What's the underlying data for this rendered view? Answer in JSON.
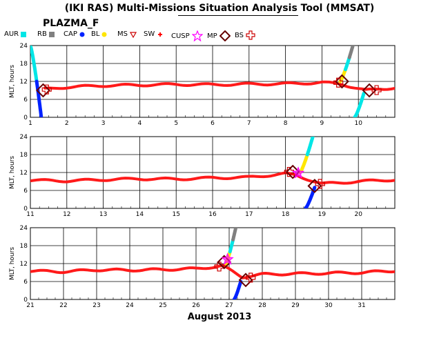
{
  "title": "(IKI RAS) Multi-Missions Situation Analysis Tool (MMSAT)",
  "mission": "PLAZMA_F",
  "legend": [
    {
      "label": "AUR",
      "icon": "cyan-square-icon",
      "color": "#00e6e6"
    },
    {
      "label": "RB",
      "icon": "gray-square-icon",
      "color": "#808080"
    },
    {
      "label": "CAP",
      "icon": "blue-circle-icon",
      "color": "#0022ff"
    },
    {
      "label": "BL",
      "icon": "yellow-circle-icon",
      "color": "#ffe600"
    },
    {
      "label": "MS",
      "icon": "triangle-icon",
      "color": "#cc0000"
    },
    {
      "label": "SW",
      "icon": "red-dot-icon",
      "color": "#ff0000"
    },
    {
      "label": "CUSP",
      "icon": "magenta-star-icon",
      "color": "#ff00ff"
    },
    {
      "label": "MP",
      "icon": "diamond-icon",
      "color": "#660000"
    },
    {
      "label": "BS",
      "icon": "cross-icon",
      "color": "#cc0000"
    }
  ],
  "x_title": "August 2013",
  "chart_data": [
    {
      "type": "scatter",
      "ylabel": "MLT, hours",
      "yticks": [
        0,
        6,
        12,
        18,
        24
      ],
      "ylim": [
        0,
        24
      ],
      "xlim": [
        1,
        11
      ],
      "xticks": [
        1,
        2,
        3,
        4,
        5,
        6,
        7,
        8,
        9,
        10
      ],
      "grid": true,
      "sw_mlt": [
        [
          1.4,
          9.4
        ],
        [
          2.0,
          10.1
        ],
        [
          3.0,
          10.6
        ],
        [
          4.0,
          10.8
        ],
        [
          5.0,
          11.0
        ],
        [
          6.0,
          10.9
        ],
        [
          7.0,
          11.1
        ],
        [
          8.0,
          11.2
        ],
        [
          9.0,
          11.6
        ],
        [
          9.5,
          11.2
        ],
        [
          10.2,
          9.0
        ],
        [
          11.0,
          9.9
        ]
      ],
      "crossings": [
        {
          "x": 1.35,
          "y": 9.0,
          "type": "MP"
        },
        {
          "x": 1.45,
          "y": 9.3,
          "type": "BS"
        },
        {
          "x": 9.55,
          "y": 12.0,
          "type": "MP"
        },
        {
          "x": 9.45,
          "y": 11.6,
          "type": "BS"
        },
        {
          "x": 10.3,
          "y": 9.0,
          "type": "MP"
        },
        {
          "x": 10.5,
          "y": 9.1,
          "type": "BS"
        }
      ],
      "inner_passes": [
        {
          "x_start": 1.0,
          "x_end": 1.3,
          "y_start": 24,
          "y_end": 0,
          "regions": [
            "AUR",
            "CAP"
          ]
        },
        {
          "x_start": 9.5,
          "x_end": 9.85,
          "y_start": 12,
          "y_end": 24,
          "regions": [
            "BL",
            "AUR",
            "RB"
          ]
        },
        {
          "x_start": 9.9,
          "x_end": 10.15,
          "y_start": 0,
          "y_end": 8,
          "regions": [
            "AUR"
          ]
        }
      ]
    },
    {
      "type": "scatter",
      "ylabel": "MLT, hours",
      "yticks": [
        0,
        6,
        12,
        18,
        24
      ],
      "ylim": [
        0,
        24
      ],
      "xlim": [
        11,
        21
      ],
      "xticks": [
        11,
        12,
        13,
        14,
        15,
        16,
        17,
        18,
        19,
        20
      ],
      "grid": true,
      "sw_mlt": [
        [
          11,
          9.4
        ],
        [
          12,
          9.2
        ],
        [
          13,
          9.6
        ],
        [
          14,
          9.9
        ],
        [
          15,
          9.8
        ],
        [
          16,
          10.2
        ],
        [
          17,
          10.4
        ],
        [
          18,
          11.6
        ],
        [
          18.3,
          11.0
        ],
        [
          19,
          8.2
        ],
        [
          20,
          9.0
        ],
        [
          21,
          9.6
        ]
      ],
      "crossings": [
        {
          "x": 18.1,
          "y": 12.2,
          "type": "BS"
        },
        {
          "x": 18.2,
          "y": 12.2,
          "type": "MP"
        },
        {
          "x": 18.35,
          "y": 11.8,
          "type": "CUSP"
        },
        {
          "x": 18.8,
          "y": 7.5,
          "type": "MP"
        },
        {
          "x": 18.95,
          "y": 8.2,
          "type": "BS"
        }
      ],
      "inner_passes": [
        {
          "x_start": 18.4,
          "x_end": 18.75,
          "y_start": 12,
          "y_end": 24,
          "regions": [
            "BL",
            "AUR"
          ]
        },
        {
          "x_start": 18.55,
          "x_end": 18.8,
          "y_start": 0,
          "y_end": 7,
          "regions": [
            "CAP"
          ]
        }
      ]
    },
    {
      "type": "scatter",
      "ylabel": "MLT, hours",
      "yticks": [
        0,
        6,
        12,
        18,
        24
      ],
      "ylim": [
        0,
        24
      ],
      "xlim": [
        21,
        32
      ],
      "xticks": [
        21,
        22,
        23,
        24,
        25,
        26,
        27,
        28,
        29,
        30,
        31
      ],
      "grid": true,
      "sw_mlt": [
        [
          21,
          9.5
        ],
        [
          22,
          9.3
        ],
        [
          23,
          9.9
        ],
        [
          24,
          9.8
        ],
        [
          25,
          10.0
        ],
        [
          26,
          10.3
        ],
        [
          26.8,
          11.2
        ],
        [
          27.4,
          7.5
        ],
        [
          28,
          8.4
        ],
        [
          29,
          8.6
        ],
        [
          30,
          8.8
        ],
        [
          31,
          9.0
        ],
        [
          32,
          9.6
        ]
      ],
      "crossings": [
        {
          "x": 26.7,
          "y": 11.0,
          "type": "BS"
        },
        {
          "x": 26.85,
          "y": 12.5,
          "type": "MP"
        },
        {
          "x": 26.95,
          "y": 13.4,
          "type": "CUSP"
        },
        {
          "x": 27.5,
          "y": 6.5,
          "type": "MP"
        },
        {
          "x": 27.65,
          "y": 7.3,
          "type": "BS"
        }
      ],
      "inner_passes": [
        {
          "x_start": 26.9,
          "x_end": 27.2,
          "y_start": 12,
          "y_end": 24,
          "regions": [
            "BL",
            "AUR",
            "RB"
          ]
        },
        {
          "x_start": 27.15,
          "x_end": 27.35,
          "y_start": 0,
          "y_end": 6,
          "regions": [
            "CAP"
          ]
        }
      ]
    }
  ]
}
